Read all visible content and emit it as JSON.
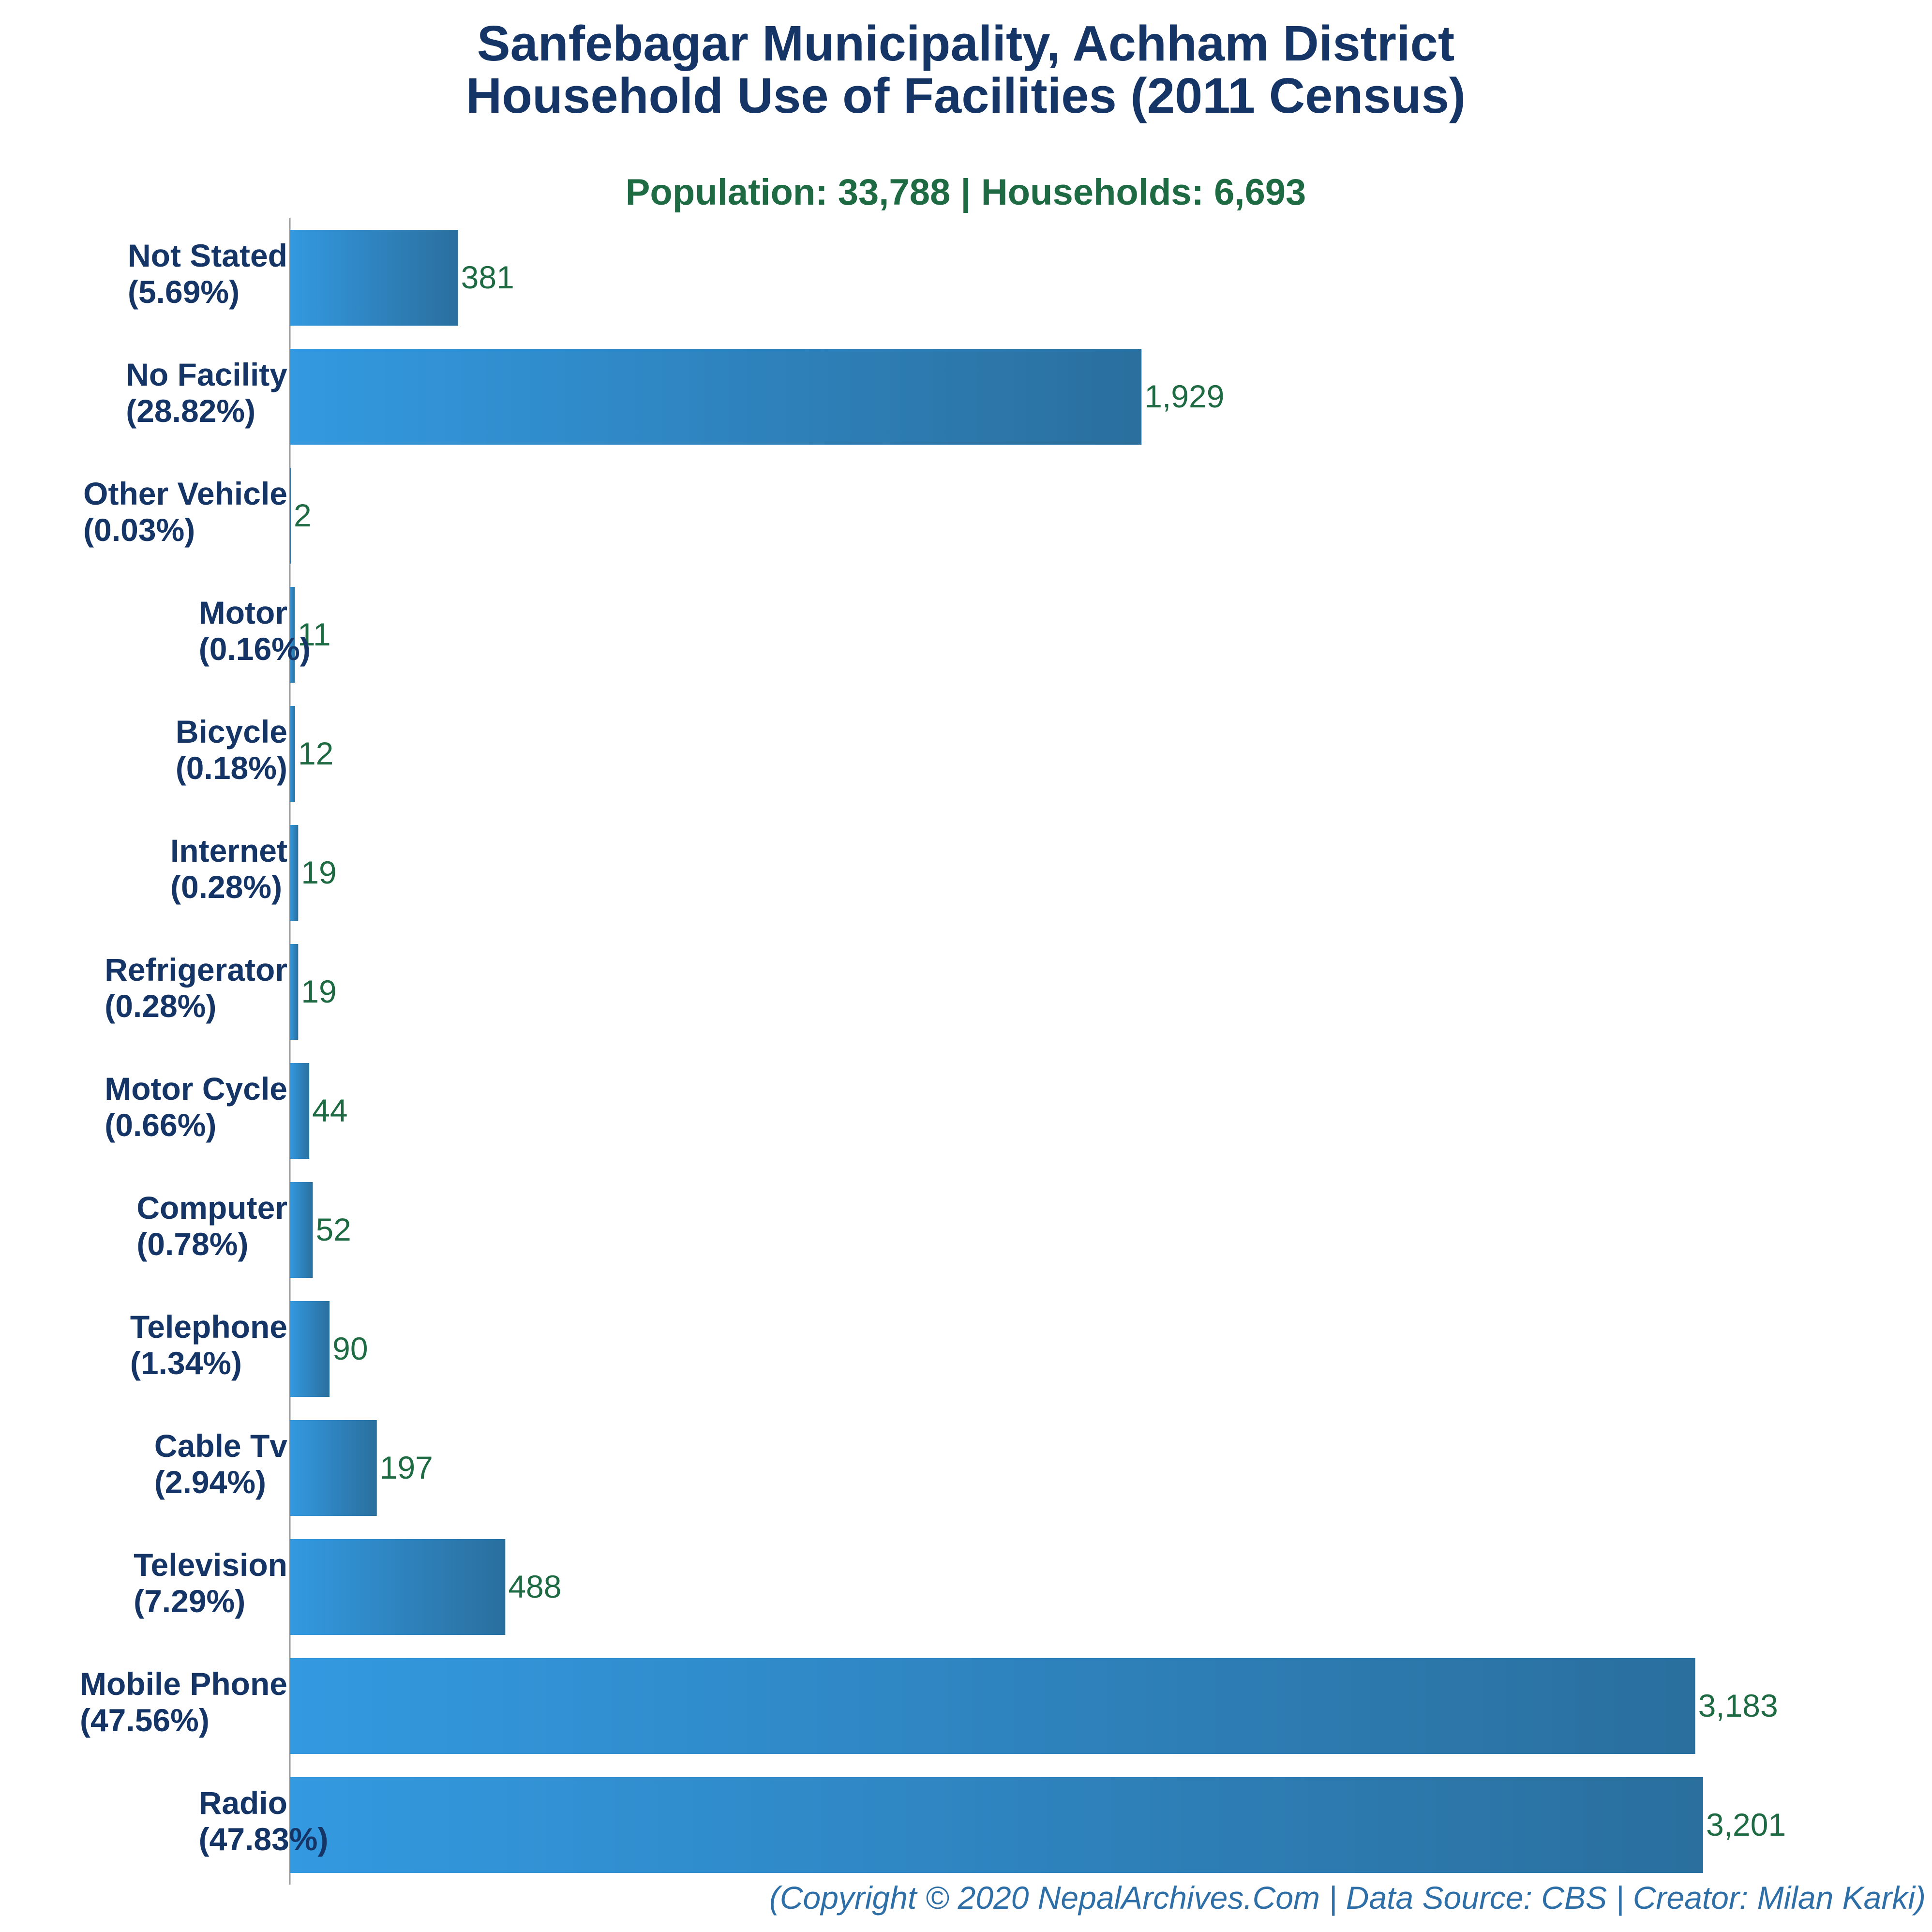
{
  "colors": {
    "title": "#143566",
    "subtitle": "#1e6b43",
    "value_label": "#1e6b43",
    "bar_start": "#3399e0",
    "bar_end": "#2a6f9e",
    "footer": "#2f6fa8",
    "axis": "#999999"
  },
  "chart_data": {
    "type": "bar",
    "orientation": "horizontal",
    "title_line1": "Sanfebagar Municipality, Achham District",
    "title_line2": "Household Use of Facilities (2011 Census)",
    "subtitle": "Population: 33,788 | Households: 6,693",
    "categories": [
      {
        "name": "Not Stated",
        "pct": "(5.69%)",
        "value": 381,
        "value_label": "381"
      },
      {
        "name": "No Facility",
        "pct": "(28.82%)",
        "value": 1929,
        "value_label": "1,929"
      },
      {
        "name": "Other Vehicle",
        "pct": "(0.03%)",
        "value": 2,
        "value_label": "2"
      },
      {
        "name": "Motor",
        "pct": "(0.16%)",
        "value": 11,
        "value_label": "11"
      },
      {
        "name": "Bicycle",
        "pct": "(0.18%)",
        "value": 12,
        "value_label": "12"
      },
      {
        "name": "Internet",
        "pct": "(0.28%)",
        "value": 19,
        "value_label": "19"
      },
      {
        "name": "Refrigerator",
        "pct": "(0.28%)",
        "value": 19,
        "value_label": "19"
      },
      {
        "name": "Motor Cycle",
        "pct": "(0.66%)",
        "value": 44,
        "value_label": "44"
      },
      {
        "name": "Computer",
        "pct": "(0.78%)",
        "value": 52,
        "value_label": "52"
      },
      {
        "name": "Telephone",
        "pct": "(1.34%)",
        "value": 90,
        "value_label": "90"
      },
      {
        "name": "Cable Tv",
        "pct": "(2.94%)",
        "value": 197,
        "value_label": "197"
      },
      {
        "name": "Television",
        "pct": "(7.29%)",
        "value": 488,
        "value_label": "488"
      },
      {
        "name": "Mobile Phone",
        "pct": "(47.56%)",
        "value": 3183,
        "value_label": "3,183"
      },
      {
        "name": "Radio",
        "pct": "(47.83%)",
        "value": 3201,
        "value_label": "3,201"
      }
    ],
    "xlim": [
      0,
      3201
    ],
    "grid": false,
    "legend": "none"
  },
  "footer": "(Copyright © 2020 NepalArchives.Com | Data Source: CBS | Creator: Milan Karki)"
}
